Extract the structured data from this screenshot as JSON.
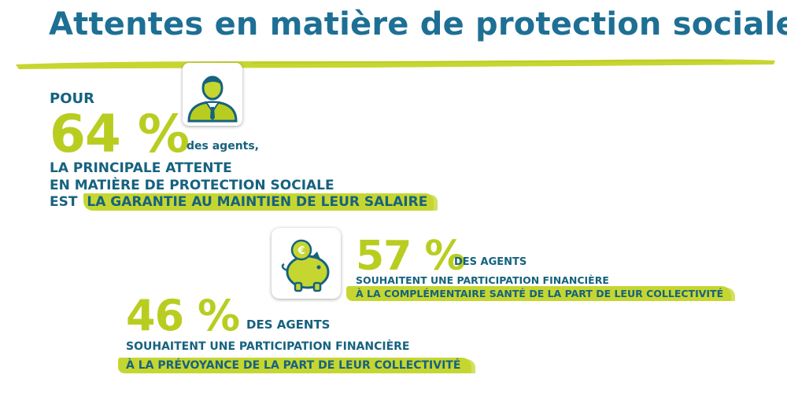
{
  "title": "Attentes en matière de protection sociale",
  "icons": {
    "agent": "person-in-suit-icon",
    "piggy": "piggy-bank-euro-icon"
  },
  "colors": {
    "title": "#1e6f94",
    "accent": "#c6d631",
    "big_number": "#b9cd21",
    "text": "#16627f"
  },
  "stat1": {
    "prefix": "POUR",
    "value": "64 %",
    "unit": "des agents,",
    "line1": "LA PRINCIPALE ATTENTE",
    "line2": "EN MATIÈRE DE PROTECTION SOCIALE",
    "line3_start": "EST",
    "line3_highlight": "LA GARANTIE AU MAINTIEN DE LEUR SALAIRE"
  },
  "stat2": {
    "value": "57 %",
    "unit": "DES AGENTS",
    "line1": "SOUHAITENT UNE PARTICIPATION FINANCIÈRE",
    "line2_highlight": "À LA COMPLÉMENTAIRE SANTÉ DE LA PART DE LEUR COLLECTIVITÉ"
  },
  "stat3": {
    "value": "46 %",
    "unit": "DES AGENTS",
    "line1": "SOUHAITENT UNE PARTICIPATION FINANCIÈRE",
    "line2_highlight": "À LA PRÉVOYANCE DE LA PART DE LEUR COLLECTIVITÉ"
  }
}
